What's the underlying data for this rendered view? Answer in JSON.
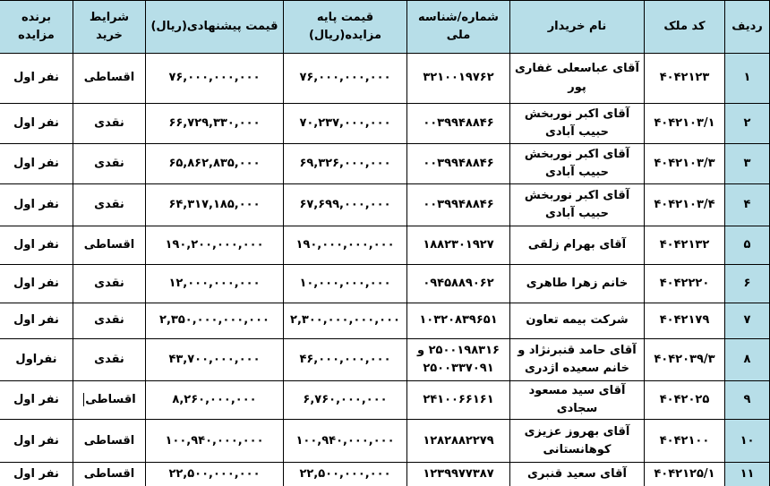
{
  "page": {
    "header_bg": "#b7dee8",
    "border_color": "#000000",
    "text_color": "#000000"
  },
  "table": {
    "columns": [
      {
        "key": "row_no",
        "label": "ردیف"
      },
      {
        "key": "property_code",
        "label": "کد ملک"
      },
      {
        "key": "buyer_name",
        "label": "نام خریدار"
      },
      {
        "key": "national_id",
        "label": "شماره/شناسه ملی"
      },
      {
        "key": "base_price",
        "label": "قیمت پایه مزایده(ریال)"
      },
      {
        "key": "bid_price",
        "label": "قیمت پیشنهادی(ریال)"
      },
      {
        "key": "purchase_terms",
        "label": "شرایط خرید"
      },
      {
        "key": "winner",
        "label": "برنده مزایده"
      }
    ],
    "rows": [
      {
        "row_no": "۱",
        "property_code": "۴۰۴۲۱۲۳",
        "buyer_name": "آقای عباسعلی غفاری پور",
        "national_id": "۳۲۱۰۰۱۹۷۶۲",
        "base_price": "۷۶,۰۰۰,۰۰۰,۰۰۰",
        "bid_price": "۷۶,۰۰۰,۰۰۰,۰۰۰",
        "purchase_terms": "اقساطی",
        "winner": "نفر اول"
      },
      {
        "row_no": "۲",
        "property_code": "۴۰۴۲۱۰۳/۱",
        "buyer_name": "آقای اکبر نوربخش حبیب آبادی",
        "national_id": "۰۰۳۹۹۴۸۸۴۶",
        "base_price": "۷۰,۲۳۷,۰۰۰,۰۰۰",
        "bid_price": "۶۶,۷۲۹,۳۳۰,۰۰۰",
        "purchase_terms": "نقدی",
        "winner": "نفر اول"
      },
      {
        "row_no": "۳",
        "property_code": "۴۰۴۲۱۰۳/۳",
        "buyer_name": "آقای اکبر نوربخش حبیب آبادی",
        "national_id": "۰۰۳۹۹۴۸۸۴۶",
        "base_price": "۶۹,۳۲۶,۰۰۰,۰۰۰",
        "bid_price": "۶۵,۸۶۲,۸۳۵,۰۰۰",
        "purchase_terms": "نقدی",
        "winner": "نفر اول"
      },
      {
        "row_no": "۴",
        "property_code": "۴۰۴۲۱۰۳/۴",
        "buyer_name": "آقای اکبر نوربخش حبیب آبادی",
        "national_id": "۰۰۳۹۹۴۸۸۴۶",
        "base_price": "۶۷,۶۹۹,۰۰۰,۰۰۰",
        "bid_price": "۶۴,۳۱۷,۱۸۵,۰۰۰",
        "purchase_terms": "نقدی",
        "winner": "نفر اول"
      },
      {
        "row_no": "۵",
        "property_code": "۴۰۴۲۱۳۲",
        "buyer_name": "آقای بهرام زلقی",
        "national_id": "۱۸۸۲۳۰۱۹۲۷",
        "base_price": "۱۹۰,۰۰۰,۰۰۰,۰۰۰",
        "bid_price": "۱۹۰,۲۰۰,۰۰۰,۰۰۰",
        "purchase_terms": "اقساطی",
        "winner": "نفر اول"
      },
      {
        "row_no": "۶",
        "property_code": "۴۰۴۲۲۲۰",
        "buyer_name": "خانم زهرا طاهری",
        "national_id": "۰۹۴۵۸۸۹۰۶۲",
        "base_price": "۱۰,۰۰۰,۰۰۰,۰۰۰",
        "bid_price": "۱۲,۰۰۰,۰۰۰,۰۰۰",
        "purchase_terms": "نقدی",
        "winner": "نفر اول"
      },
      {
        "row_no": "۷",
        "property_code": "۴۰۴۲۱۷۹",
        "buyer_name": "شرکت بیمه تعاون",
        "national_id": "۱۰۳۲۰۸۳۹۶۵۱",
        "base_price": "۲,۳۰۰,۰۰۰,۰۰۰,۰۰۰",
        "bid_price": "۲,۳۵۰,۰۰۰,۰۰۰,۰۰۰",
        "purchase_terms": "نقدی",
        "winner": "نفر اول"
      },
      {
        "row_no": "۸",
        "property_code": "۴۰۴۲۰۳۹/۳",
        "buyer_name": "آقای حامد قنبرنژاد و خانم سعیده اژدری",
        "national_id": "۲۵۰۰۱۹۸۳۱۶ و ۲۵۰۰۳۳۷۰۹۱",
        "base_price": "۴۶,۰۰۰,۰۰۰,۰۰۰",
        "bid_price": "۴۳,۷۰۰,۰۰۰,۰۰۰",
        "purchase_terms": "نقدی",
        "winner": "نفراول"
      },
      {
        "row_no": "۹",
        "property_code": "۴۰۴۲۰۲۵",
        "buyer_name": "آقای سید مسعود سجادی",
        "national_id": "۲۴۱۰۰۶۶۱۶۱",
        "base_price": "۶,۷۶۰,۰۰۰,۰۰۰",
        "bid_price": "۸,۲۶۰,۰۰۰,۰۰۰",
        "purchase_terms": "اقساطی",
        "winner": "نفر اول",
        "has_cursor": true
      },
      {
        "row_no": "۱۰",
        "property_code": "۴۰۴۲۱۰۰",
        "buyer_name": "آقای بهروز عزیزی کوهانستانی",
        "national_id": "۱۲۸۲۸۸۲۲۷۹",
        "base_price": "۱۰۰,۹۴۰,۰۰۰,۰۰۰",
        "bid_price": "۱۰۰,۹۴۰,۰۰۰,۰۰۰",
        "purchase_terms": "اقساطی",
        "winner": "نفر اول"
      },
      {
        "row_no": "۱۱",
        "property_code": "۴۰۴۲۱۲۵/۱",
        "buyer_name": "آقای سعید قنبری",
        "national_id": "۱۲۳۹۹۷۷۳۸۷",
        "base_price": "۲۲,۵۰۰,۰۰۰,۰۰۰",
        "bid_price": "۲۲,۵۰۰,۰۰۰,۰۰۰",
        "purchase_terms": "اقساطی",
        "winner": "نفر اول"
      }
    ]
  }
}
